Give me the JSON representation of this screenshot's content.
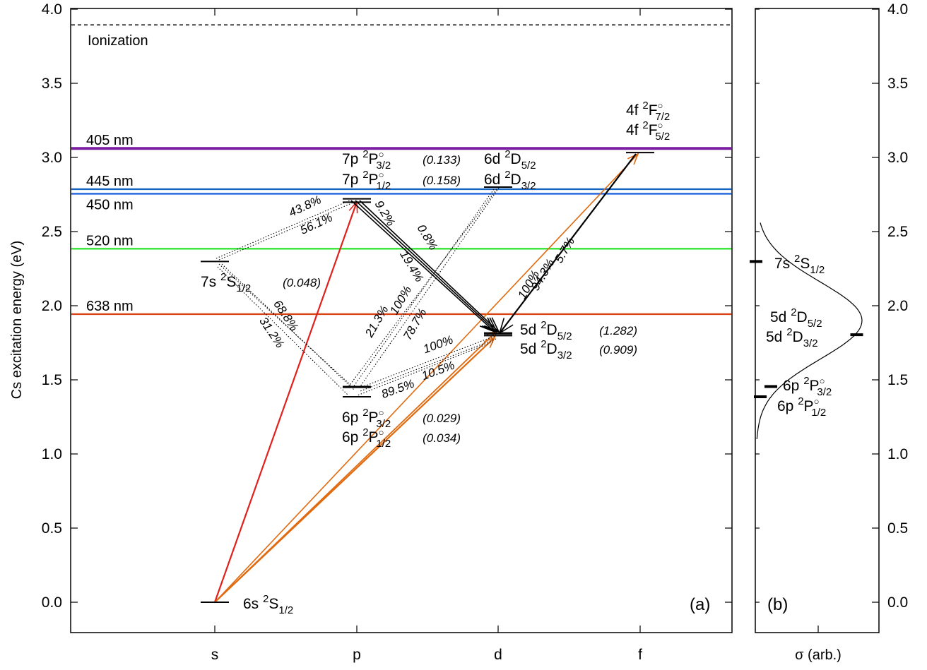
{
  "chart_data": [
    {
      "type": "energy-level-diagram",
      "panel_label": "(a)",
      "ylabel": "Cs excitation energy (eV)",
      "ylim": [
        -0.2,
        4.0
      ],
      "yticks": [
        "0.0",
        "0.5",
        "1.0",
        "1.5",
        "2.0",
        "2.5",
        "3.0",
        "3.5",
        "4.0"
      ],
      "x_categories": [
        "s",
        "p",
        "d",
        "f"
      ],
      "ionization": {
        "label": "Ionization",
        "energy": 3.894
      },
      "laser_lines": [
        {
          "label": "405 nm",
          "energy": 3.061,
          "color": "#7b1fa2"
        },
        {
          "label": "445 nm",
          "energy": 2.786,
          "color": "#1565c0"
        },
        {
          "label": "450 nm",
          "energy": 2.755,
          "color": "#1e64dc"
        },
        {
          "label": "520 nm",
          "energy": 2.384,
          "color": "#33e533"
        },
        {
          "label": "638 nm",
          "energy": 1.943,
          "color": "#d84315"
        }
      ],
      "levels": [
        {
          "id": "6s",
          "orbital": "s",
          "energies": [
            0.0
          ],
          "labels": [
            {
              "pre": "6s ",
              "sup": "2",
              "term": "S",
              "sub": "1/2",
              "odd": false,
              "val": ""
            }
          ]
        },
        {
          "id": "7s",
          "orbital": "s",
          "energies": [
            2.298
          ],
          "labels": [
            {
              "pre": "7s ",
              "sup": "2",
              "term": "S",
              "sub": "1/2",
              "odd": false,
              "val": "(0.048)"
            }
          ]
        },
        {
          "id": "6p",
          "orbital": "p",
          "energies": [
            1.386,
            1.455
          ],
          "labels": [
            {
              "pre": "6p ",
              "sup": "2",
              "term": "P",
              "sub": "3/2",
              "odd": true,
              "val": "(0.029)"
            },
            {
              "pre": "6p ",
              "sup": "2",
              "term": "P",
              "sub": "1/2",
              "odd": true,
              "val": "(0.034)"
            }
          ]
        },
        {
          "id": "7p",
          "orbital": "p",
          "energies": [
            2.698,
            2.721
          ],
          "labels": [
            {
              "pre": "7p ",
              "sup": "2",
              "term": "P",
              "sub": "3/2",
              "odd": true,
              "val": "(0.133)"
            },
            {
              "pre": "7p ",
              "sup": "2",
              "term": "P",
              "sub": "1/2",
              "odd": true,
              "val": "(0.158)"
            }
          ]
        },
        {
          "id": "5d",
          "orbital": "d",
          "energies": [
            1.798,
            1.81
          ],
          "labels": [
            {
              "pre": "5d ",
              "sup": "2",
              "term": "D",
              "sub": "5/2",
              "odd": false,
              "val": "(1.282)"
            },
            {
              "pre": "5d ",
              "sup": "2",
              "term": "D",
              "sub": "3/2",
              "odd": false,
              "val": "(0.909)"
            }
          ]
        },
        {
          "id": "6d",
          "orbital": "d",
          "energies": [
            2.8
          ],
          "labels": [
            {
              "pre": "6d ",
              "sup": "2",
              "term": "D",
              "sub": "5/2",
              "odd": false,
              "val": ""
            },
            {
              "pre": "6d ",
              "sup": "2",
              "term": "D",
              "sub": "3/2",
              "odd": false,
              "val": ""
            }
          ]
        },
        {
          "id": "4f",
          "orbital": "f",
          "energies": [
            3.033
          ],
          "labels": [
            {
              "pre": "4f ",
              "sup": "2",
              "term": "F",
              "sub": "7/2",
              "odd": true,
              "val": ""
            },
            {
              "pre": "4f ",
              "sup": "2",
              "term": "F",
              "sub": "5/2",
              "odd": true,
              "val": ""
            }
          ]
        }
      ],
      "excitations": [
        {
          "from": "6s",
          "to": "7p",
          "color": "#e0201c"
        },
        {
          "from": "6s",
          "to": "5d",
          "color": "#e06a10"
        },
        {
          "from": "6s",
          "to": "4f",
          "color": "#e06a10"
        }
      ],
      "decays": [
        {
          "from": "7p",
          "to": "5d",
          "percent": "9.2%",
          "style": "solid"
        },
        {
          "from": "7p",
          "to": "5d",
          "percent": "0.8%",
          "style": "solid"
        },
        {
          "from": "7p",
          "to": "5d",
          "percent": "19.4%",
          "style": "solid"
        },
        {
          "from": "4f",
          "to": "5d",
          "percent": "94.3%",
          "style": "solid"
        },
        {
          "from": "4f",
          "to": "5d",
          "percent": "5.7%",
          "style": "solid"
        },
        {
          "from": "7s",
          "to": "7p",
          "percent": "43.8%",
          "style": "dotted"
        },
        {
          "from": "7s",
          "to": "7p",
          "percent": "56.1%",
          "style": "dotted"
        },
        {
          "from": "7s",
          "to": "6p",
          "percent": "68.8%",
          "style": "dotted"
        },
        {
          "from": "7s",
          "to": "6p",
          "percent": "31.2%",
          "style": "dotted"
        },
        {
          "from": "6d",
          "to": "6p",
          "percent": "21.3%",
          "style": "dotted"
        },
        {
          "from": "6d",
          "to": "6p",
          "percent": "100%",
          "style": "dotted"
        },
        {
          "from": "6d",
          "to": "6p",
          "percent": "78.7%",
          "style": "dotted"
        },
        {
          "from": "5d",
          "to": "6p",
          "percent": "100%",
          "style": "dotted"
        },
        {
          "from": "5d",
          "to": "6p",
          "percent": "89.5%",
          "style": "dotted"
        },
        {
          "from": "5d",
          "to": "6p",
          "percent": "10.5%",
          "style": "dotted"
        },
        {
          "from": "4f",
          "to": "5d",
          "percent": "100%",
          "style": "orange-label"
        }
      ]
    },
    {
      "type": "line",
      "panel_label": "(b)",
      "xlabel": "σ (arb.)",
      "ylim": [
        -0.2,
        4.0
      ],
      "yticks": [
        "0.0",
        "0.5",
        "1.0",
        "1.5",
        "2.0",
        "2.5",
        "3.0",
        "3.5",
        "4.0"
      ],
      "curve": {
        "center_eV": 1.9,
        "sigma_eV": 0.26,
        "amplitude": 1.0,
        "range_eV": [
          1.1,
          2.56
        ]
      },
      "markers": [
        {
          "energy": 2.298,
          "sigma": 0.0,
          "labels": [
            {
              "pre": "7s ",
              "sup": "2",
              "term": "S",
              "sub": "1/2",
              "odd": false
            }
          ]
        },
        {
          "energy": 1.804,
          "sigma": 0.95,
          "labels": [
            {
              "pre": "5d ",
              "sup": "2",
              "term": "D",
              "sub": "5/2",
              "odd": false
            },
            {
              "pre": "5d ",
              "sup": "2",
              "term": "D",
              "sub": "3/2",
              "odd": false
            }
          ]
        },
        {
          "energy": 1.455,
          "sigma": 0.14,
          "labels": [
            {
              "pre": "6p ",
              "sup": "2",
              "term": "P",
              "sub": "3/2",
              "odd": true
            },
            {
              "pre": "6p ",
              "sup": "2",
              "term": "P",
              "sub": "1/2",
              "odd": true
            }
          ]
        },
        {
          "energy": 1.386,
          "sigma": 0.04,
          "labels": []
        }
      ]
    }
  ]
}
